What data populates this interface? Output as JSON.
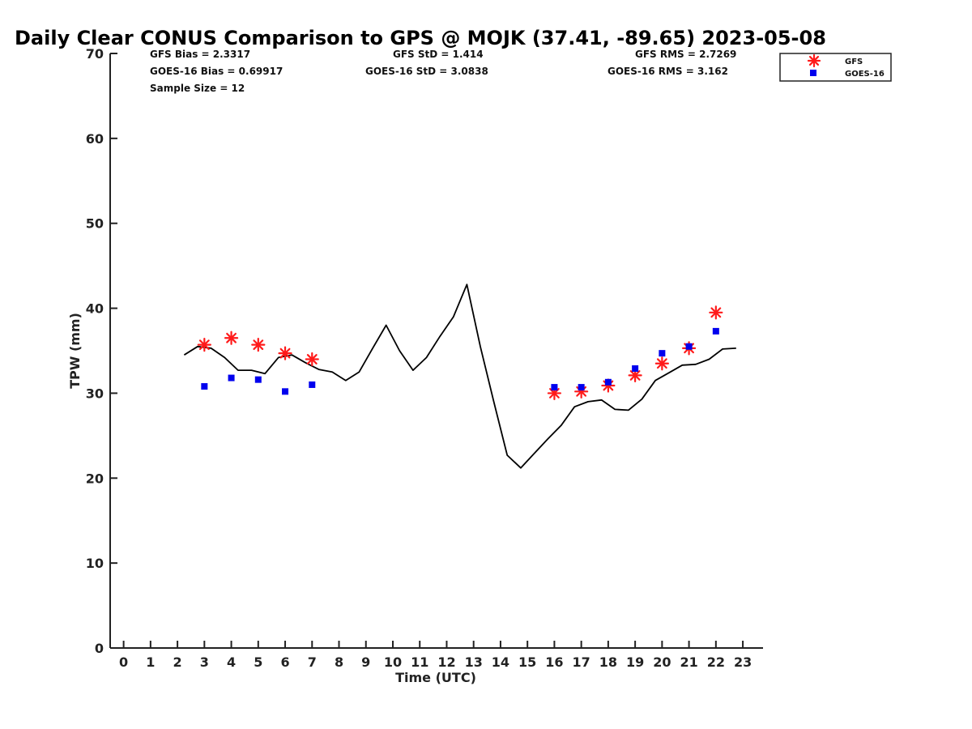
{
  "chart_data": {
    "type": "line",
    "title": "Daily Clear CONUS Comparison to GPS @ MOJK (37.41, -89.65) 2023-05-08",
    "xlabel": "Time (UTC)",
    "ylabel": "TPW (mm)",
    "xlim": [
      -0.5,
      23.75
    ],
    "ylim": [
      0,
      70
    ],
    "xticks": [
      0,
      1,
      2,
      3,
      4,
      5,
      6,
      7,
      8,
      9,
      10,
      11,
      12,
      13,
      14,
      15,
      16,
      17,
      18,
      19,
      20,
      21,
      22,
      23
    ],
    "yticks": [
      0,
      10,
      20,
      30,
      40,
      50,
      60,
      70
    ],
    "grid": false,
    "legend_position": "top-right",
    "stats": {
      "gfs_bias": "GFS Bias = 2.3317",
      "gfs_std": "GFS StD = 1.414",
      "gfs_rms": "GFS RMS = 2.7269",
      "goes_bias": "GOES-16 Bias = 0.69917",
      "goes_std": "GOES-16 StD = 3.0838",
      "goes_rms": "GOES-16 RMS = 3.162",
      "sample_size": "Sample Size = 12"
    },
    "series": [
      {
        "kind": "line",
        "color": "#000000",
        "x": [
          2.25,
          2.75,
          3.25,
          3.75,
          4.25,
          4.75,
          5.25,
          5.75,
          6.25,
          6.75,
          7.25,
          7.75,
          8.25,
          8.75,
          9.25,
          9.75,
          10.25,
          10.75,
          11.25,
          11.75,
          12.25,
          12.75,
          13.25,
          13.75,
          14.25,
          14.75,
          15.25,
          15.75,
          16.25,
          16.75,
          17.25,
          17.75,
          18.25,
          18.75,
          19.25,
          19.75,
          20.25,
          20.75,
          21.25,
          21.75,
          22.25,
          22.75
        ],
        "y": [
          34.5,
          35.5,
          35.3,
          34.2,
          32.7,
          32.7,
          32.3,
          34.2,
          34.5,
          33.6,
          32.8,
          32.5,
          31.5,
          32.5,
          35.3,
          38.0,
          35.0,
          32.7,
          34.2,
          36.7,
          39.0,
          42.8,
          35.5,
          29.0,
          22.7,
          21.2,
          22.9,
          24.6,
          26.2,
          28.4,
          29.0,
          29.2,
          28.1,
          28.0,
          29.3,
          31.5,
          32.4,
          33.3,
          33.4,
          34.0,
          35.2,
          35.3
        ]
      },
      {
        "name": "GFS",
        "kind": "scatter",
        "marker": "asterisk",
        "color": "#ff1a1a",
        "x": [
          3,
          4,
          5,
          6,
          7,
          16,
          17,
          18,
          19,
          20,
          21,
          22
        ],
        "y": [
          35.7,
          36.5,
          35.7,
          34.7,
          34.0,
          30.0,
          30.2,
          30.9,
          32.1,
          33.5,
          35.3,
          39.5
        ]
      },
      {
        "name": "GOES-16",
        "kind": "scatter",
        "marker": "square",
        "color": "#0000ee",
        "x": [
          3,
          4,
          5,
          6,
          7,
          16,
          17,
          18,
          19,
          20,
          21,
          22
        ],
        "y": [
          30.8,
          31.8,
          31.6,
          30.2,
          31.0,
          30.7,
          30.7,
          31.3,
          32.9,
          34.7,
          35.5,
          37.3
        ]
      }
    ]
  }
}
